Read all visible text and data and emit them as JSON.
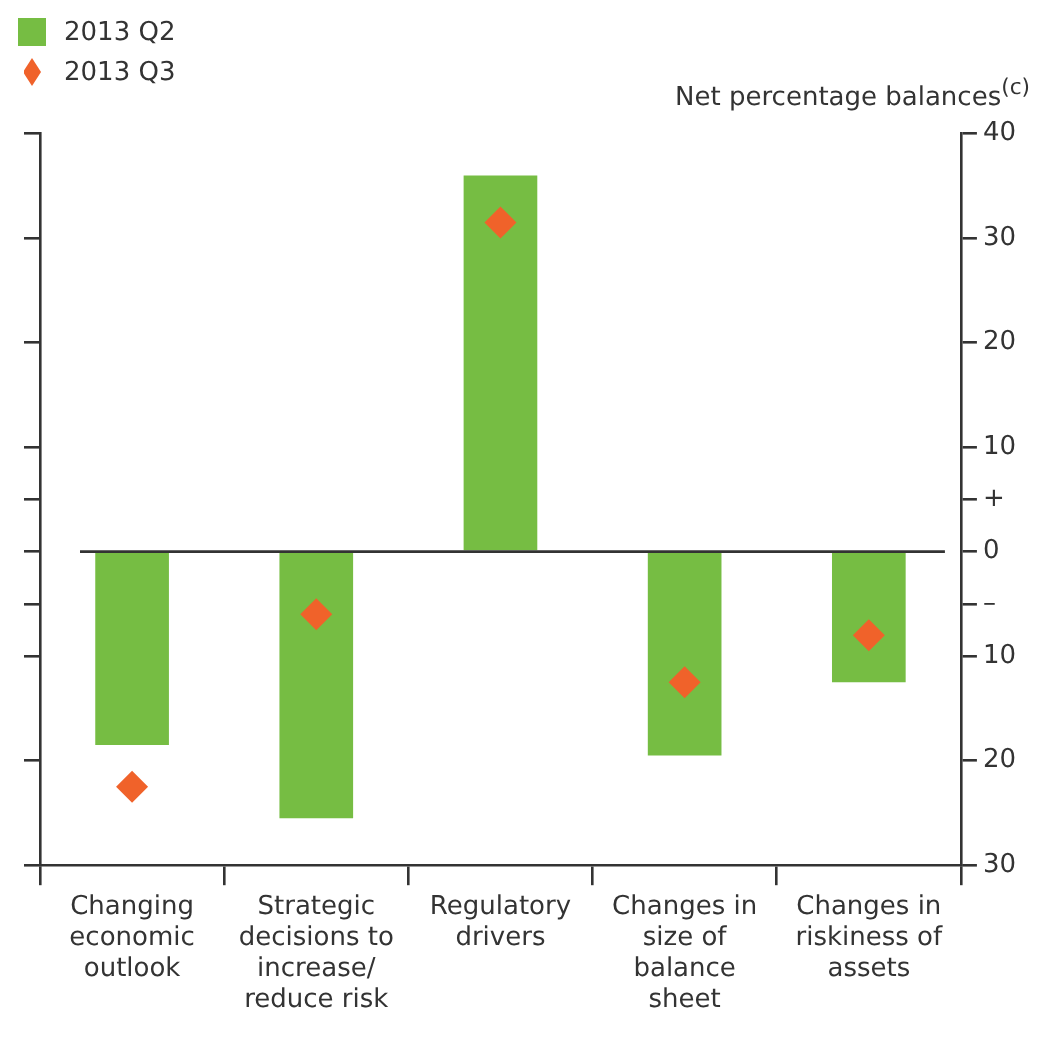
{
  "chart_data": {
    "type": "bar",
    "ylabel": "Net percentage balances$^{(c)}$",
    "categories": [
      "Changing economic outlook",
      "Strategic decisions to increase/reduce risk",
      "Regulatory drivers",
      "Changes in size of balance sheet",
      "Changes in riskiness of assets"
    ],
    "series": [
      {
        "name": "2013 Q2",
        "color": "#76bd43",
        "values": [
          -18.5,
          -25.5,
          36,
          -19.5,
          -12.5
        ]
      },
      {
        "name": "2013 Q3",
        "type": "scatter",
        "marker": "diamond",
        "color": "#f0622a",
        "values": [
          -22.5,
          -6,
          31.5,
          -12.5,
          -8
        ]
      }
    ],
    "ylim": [
      -30,
      40
    ],
    "yticks": [
      40,
      30,
      20,
      10,
      {
        "value": 5,
        "label": "+"
      },
      0,
      {
        "value": -5,
        "label": "–"
      },
      {
        "value": -10,
        "label": "10"
      },
      {
        "value": -20,
        "label": "20"
      },
      {
        "value": -30,
        "label": "30"
      }
    ],
    "ref_lines": [
      {
        "axis": "y",
        "value": 0,
        "color": "#333333"
      }
    ],
    "legend": "top left",
    "grid": false
  }
}
